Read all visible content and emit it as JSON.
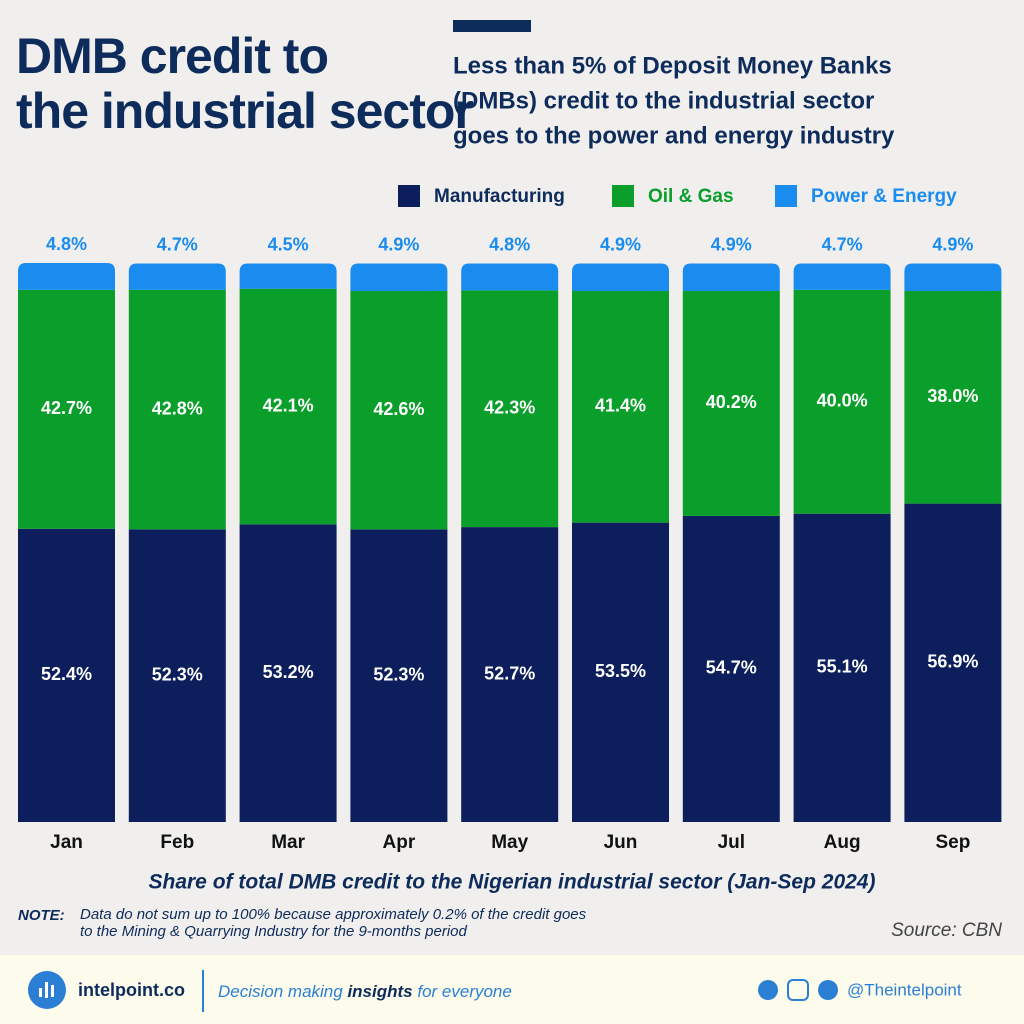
{
  "chart_data": {
    "type": "stacked_bar",
    "title": [
      "DMB credit to",
      "the industrial sector"
    ],
    "subtitle": [
      "Less than 5% of Deposit Money Banks",
      "(DMBs) credit to the industrial sector",
      "goes to the power and energy industry"
    ],
    "x_label": "Share of total DMB credit to the Nigerian industrial sector (Jan-Sep 2024)",
    "categories": [
      "Jan",
      "Feb",
      "Mar",
      "Apr",
      "May",
      "Jun",
      "Jul",
      "Aug",
      "Sep"
    ],
    "series": [
      {
        "name": "Manufacturing",
        "color": "#0c1f5c",
        "values": [
          52.4,
          52.3,
          53.2,
          52.3,
          52.7,
          53.5,
          54.7,
          55.1,
          56.9
        ],
        "value_labels": [
          "52.4%",
          "52.3%",
          "53.2%",
          "52.3%",
          "52.7%",
          "53.5%",
          "54.7%",
          "55.1%",
          "56.9%"
        ]
      },
      {
        "name": "Oil & Gas",
        "color": "#0a9e2a",
        "values": [
          42.7,
          42.8,
          42.1,
          42.6,
          42.3,
          41.4,
          40.2,
          40.0,
          38.0
        ],
        "value_labels": [
          "42.7%",
          "42.8%",
          "42.1%",
          "42.6%",
          "42.3%",
          "41.4%",
          "40.2%",
          "40.0%",
          "38.0%"
        ]
      },
      {
        "name": "Power & Energy",
        "color": "#1a8cf0",
        "values": [
          4.8,
          4.7,
          4.5,
          4.9,
          4.8,
          4.9,
          4.9,
          4.7,
          4.9
        ],
        "value_labels": [
          "4.8%",
          "4.7%",
          "4.5%",
          "4.9%",
          "4.8%",
          "4.9%",
          "4.9%",
          "4.7%",
          "4.9%"
        ]
      }
    ],
    "note_label": "NOTE:",
    "note": [
      "Data do not sum up to 100% because approximately  0.2% of the credit goes",
      "to the Mining & Quarrying Industry for the 9-months period"
    ],
    "source": "Source: CBN"
  },
  "footer": {
    "brand": "intelpoint.co",
    "tagline": [
      "Decision making ",
      "insights",
      " for everyone"
    ],
    "handle": "@Theintelpoint"
  }
}
